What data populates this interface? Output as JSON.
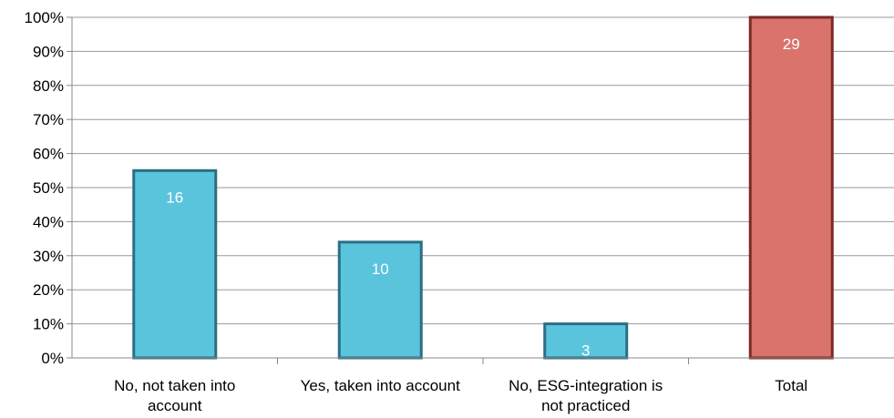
{
  "chart_data": {
    "type": "bar",
    "categories": [
      [
        "No, not taken into",
        "account"
      ],
      [
        "Yes, taken into account"
      ],
      [
        "No, ESG-integration is",
        "not practiced"
      ],
      [
        "Total"
      ]
    ],
    "values": [
      55,
      34,
      10,
      100
    ],
    "data_labels": [
      "16",
      "10",
      "3",
      "29"
    ],
    "bar_colors": [
      "#5bc4dd",
      "#5bc4dd",
      "#5bc4dd",
      "#d9736c"
    ],
    "bar_borders": [
      "#2a6f83",
      "#2a6f83",
      "#2a6f83",
      "#7a2a26"
    ],
    "ylim": [
      0,
      100
    ],
    "y_ticks": [
      "0%",
      "10%",
      "20%",
      "30%",
      "40%",
      "50%",
      "60%",
      "70%",
      "80%",
      "90%",
      "100%"
    ],
    "grid": true,
    "title": "",
    "xlabel": "",
    "ylabel": ""
  }
}
